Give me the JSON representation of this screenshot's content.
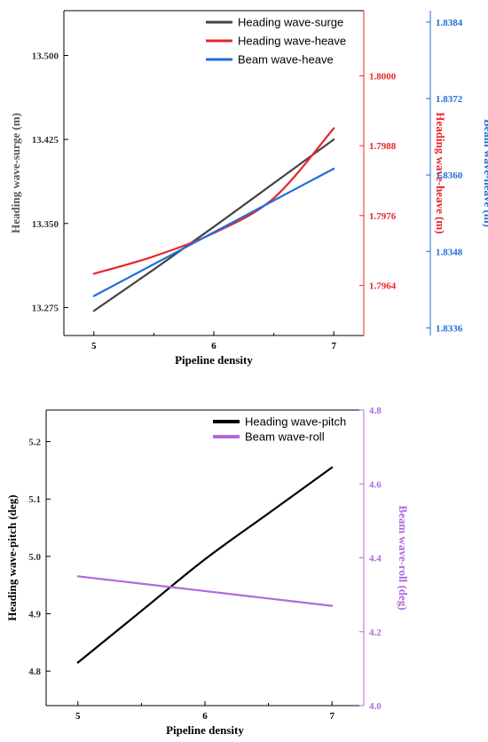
{
  "chart_data": [
    {
      "type": "line",
      "x": [
        5,
        5.5,
        6,
        6.5,
        7
      ],
      "xlabel": "Pipeline density",
      "xlim": [
        4.75,
        7.25
      ],
      "xticks": [
        "5",
        "6",
        "7"
      ],
      "axes": {
        "left": {
          "label": "Heading wave-surge (m)",
          "ylim": [
            13.25,
            13.54
          ],
          "ticks": [
            "13.275",
            "13.350",
            "13.425",
            "13.500"
          ],
          "color": "#444444"
        },
        "right1": {
          "label": "Heading wave-heave (m)",
          "ylim": [
            1.79554,
            1.80112
          ],
          "ticks": [
            "1.7964",
            "1.7976",
            "1.7988",
            "1.8000"
          ],
          "color": "#e8262d"
        },
        "right2": {
          "label": "Beam wave-heave (m)",
          "ylim": [
            1.83348,
            1.83858
          ],
          "ticks": [
            "1.8336",
            "1.8348",
            "1.8360",
            "1.8372",
            "1.8384"
          ],
          "color": "#1f6fdb"
        }
      },
      "series": [
        {
          "name": "Heading wave-surge",
          "axis": "left",
          "color": "#444444",
          "x": [
            5,
            5.5,
            6,
            6.5,
            7
          ],
          "values": [
            13.272,
            13.309,
            13.347,
            13.386,
            13.425
          ]
        },
        {
          "name": "Heading wave-heave",
          "axis": "right1",
          "color": "#e8262d",
          "x": [
            5,
            5.5,
            6,
            6.5,
            7
          ],
          "values": [
            1.7966,
            1.7969,
            1.7973,
            1.7979,
            1.7991
          ]
        },
        {
          "name": "Beam wave-heave",
          "axis": "right2",
          "color": "#1f6fdb",
          "x": [
            5,
            5.5,
            6,
            6.5,
            7
          ],
          "values": [
            1.8341,
            1.8346,
            1.8351,
            1.8356,
            1.8361
          ]
        }
      ],
      "legend_position": "top-right"
    },
    {
      "type": "line",
      "x": [
        5,
        5.5,
        6,
        6.5,
        7
      ],
      "xlabel": "Pipeline density",
      "xlim": [
        4.75,
        7.25
      ],
      "xticks": [
        "5",
        "6",
        "7"
      ],
      "axes": {
        "left": {
          "label": "Heading wave-pitch (deg)",
          "ylim": [
            4.74,
            5.255
          ],
          "ticks": [
            "4.8",
            "4.9",
            "5.0",
            "5.1",
            "5.2"
          ],
          "color": "#000000"
        },
        "right1": {
          "label": "Beam wave-roll (deg)",
          "ylim": [
            4.0,
            4.8
          ],
          "ticks": [
            "4.0",
            "4.2",
            "4.4",
            "4.6",
            "4.8"
          ],
          "color": "#b06ae0"
        }
      },
      "series": [
        {
          "name": "Heading wave-pitch",
          "axis": "left",
          "color": "#000000",
          "x": [
            5,
            5.5,
            6,
            6.5,
            7
          ],
          "values": [
            4.815,
            4.905,
            4.995,
            5.075,
            5.155
          ]
        },
        {
          "name": "Beam wave-roll",
          "axis": "right1",
          "color": "#b06ae0",
          "x": [
            5,
            5.5,
            6,
            6.5,
            7
          ],
          "values": [
            4.35,
            4.33,
            4.31,
            4.29,
            4.27
          ]
        }
      ],
      "legend_position": "top-right"
    }
  ]
}
